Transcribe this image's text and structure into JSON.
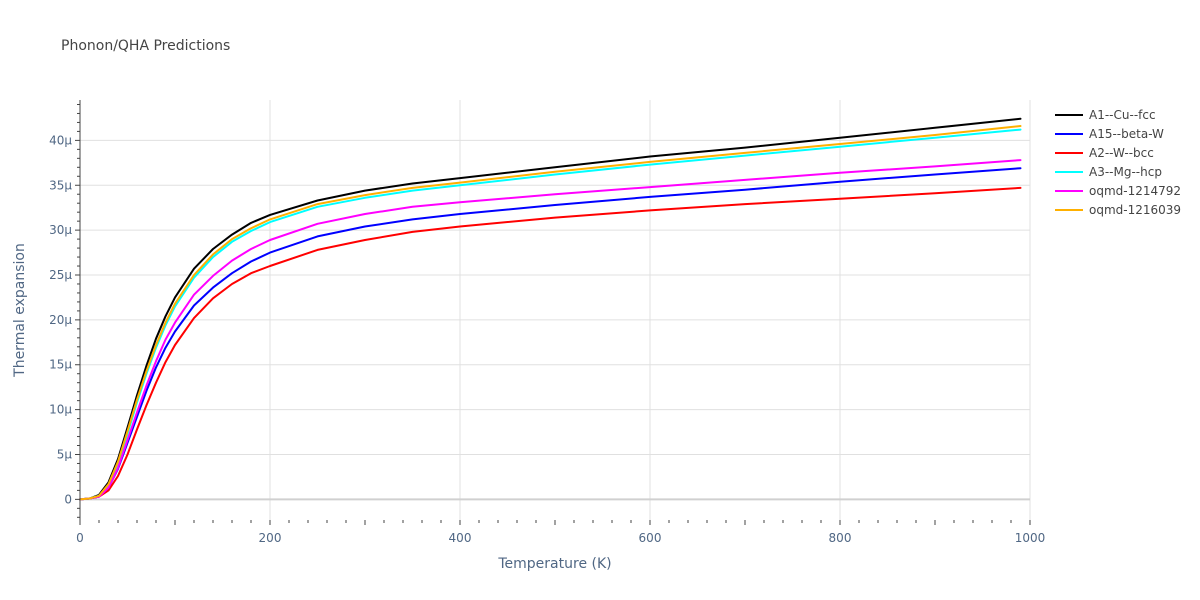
{
  "chart_data": {
    "type": "line",
    "title": "Phonon/QHA Predictions",
    "xlabel": "Temperature (K)",
    "ylabel": "Thermal expansion",
    "xlim": [
      0,
      1000
    ],
    "ylim": [
      -2.3,
      44.5
    ],
    "x_ticks": [
      0,
      200,
      400,
      600,
      800,
      1000
    ],
    "x_tick_labels": [
      "0",
      "200",
      "400",
      "600",
      "800",
      "1000"
    ],
    "y_ticks": [
      0,
      5,
      10,
      15,
      20,
      25,
      30,
      35,
      40
    ],
    "y_tick_labels": [
      "0",
      "5µ",
      "10µ",
      "15µ",
      "20µ",
      "25µ",
      "30µ",
      "35µ",
      "40µ"
    ],
    "grid": true,
    "legend_position": "top-right",
    "x": [
      0,
      10,
      20,
      30,
      40,
      50,
      60,
      70,
      80,
      90,
      100,
      120,
      140,
      160,
      180,
      200,
      250,
      300,
      350,
      400,
      500,
      600,
      700,
      800,
      900,
      990
    ],
    "series": [
      {
        "name": "A1--Cu--fcc",
        "color": "#000000",
        "values": [
          0,
          0.1,
          0.5,
          1.9,
          4.5,
          8.0,
          11.6,
          14.9,
          17.9,
          20.4,
          22.5,
          25.7,
          27.9,
          29.5,
          30.8,
          31.7,
          33.3,
          34.4,
          35.2,
          35.8,
          37.0,
          38.2,
          39.2,
          40.3,
          41.4,
          42.4
        ]
      },
      {
        "name": "A15--beta-W",
        "color": "#0000ff",
        "values": [
          0,
          0.1,
          0.3,
          1.3,
          3.4,
          6.3,
          9.2,
          12.1,
          14.7,
          16.9,
          18.7,
          21.6,
          23.6,
          25.2,
          26.5,
          27.5,
          29.3,
          30.4,
          31.2,
          31.8,
          32.8,
          33.7,
          34.5,
          35.4,
          36.2,
          36.9
        ]
      },
      {
        "name": "A2--W--bcc",
        "color": "#ff0000",
        "values": [
          0,
          0.1,
          0.3,
          1.0,
          2.6,
          5.0,
          7.8,
          10.5,
          13.0,
          15.3,
          17.2,
          20.2,
          22.4,
          24.0,
          25.2,
          26.0,
          27.8,
          28.9,
          29.8,
          30.4,
          31.4,
          32.2,
          32.9,
          33.5,
          34.1,
          34.7
        ]
      },
      {
        "name": "A3--Mg--hcp",
        "color": "#00ffff",
        "values": [
          0,
          0.1,
          0.4,
          1.6,
          4.0,
          7.3,
          10.8,
          14.0,
          16.9,
          19.4,
          21.5,
          24.7,
          27.0,
          28.7,
          29.9,
          30.9,
          32.6,
          33.6,
          34.4,
          35.0,
          36.2,
          37.3,
          38.3,
          39.3,
          40.3,
          41.2
        ]
      },
      {
        "name": "oqmd-1214792",
        "color": "#ff00ff",
        "values": [
          0,
          0.1,
          0.3,
          1.3,
          3.5,
          6.6,
          9.7,
          12.7,
          15.4,
          17.8,
          19.7,
          22.8,
          24.9,
          26.6,
          27.9,
          28.9,
          30.7,
          31.8,
          32.6,
          33.1,
          34.0,
          34.8,
          35.6,
          36.4,
          37.1,
          37.8
        ]
      },
      {
        "name": "oqmd-1216039",
        "color": "#ffb000",
        "values": [
          0,
          0.1,
          0.4,
          1.7,
          4.2,
          7.6,
          11.1,
          14.3,
          17.2,
          19.7,
          21.8,
          25.0,
          27.3,
          29.0,
          30.2,
          31.2,
          32.9,
          33.9,
          34.7,
          35.3,
          36.5,
          37.6,
          38.6,
          39.6,
          40.6,
          41.6
        ]
      }
    ]
  }
}
